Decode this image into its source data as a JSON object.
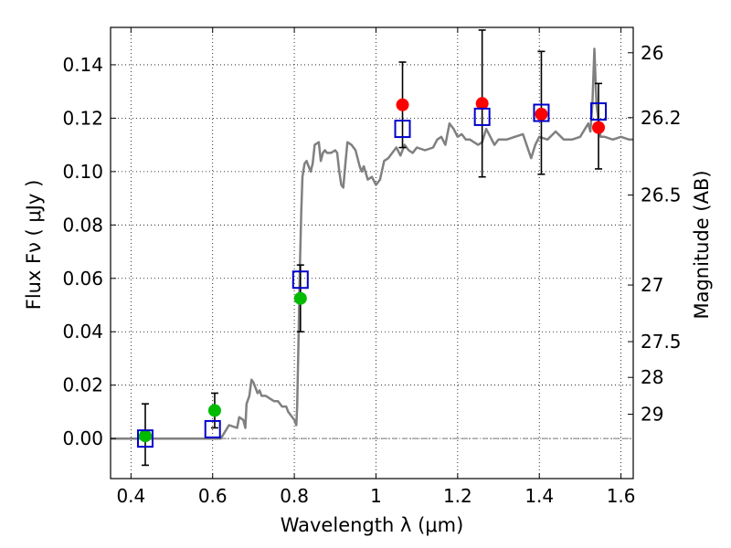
{
  "chart_data": {
    "type": "scatter",
    "title": "",
    "xlabel": "Wavelength  λ (μm)",
    "ylabel": "Flux  Fν  ( μJy )",
    "ylabel_right": "Magnitude (AB)",
    "xlim": [
      0.35,
      1.63
    ],
    "ylim": [
      -0.015,
      0.154
    ],
    "grid": true,
    "x_ticks": [
      0.4,
      0.6,
      0.8,
      1.0,
      1.2,
      1.4,
      1.6
    ],
    "x_tick_labels": [
      "0.4",
      "0.6",
      "0.8",
      "1",
      "1.2",
      "1.4",
      "1.6"
    ],
    "y_ticks": [
      0.0,
      0.02,
      0.04,
      0.06,
      0.08,
      0.1,
      0.12,
      0.14
    ],
    "y_tick_labels": [
      "0.00",
      "0.02",
      "0.04",
      "0.06",
      "0.08",
      "0.10",
      "0.12",
      "0.14"
    ],
    "right_axis_ticks": [
      {
        "label": "26",
        "flux": 0.1445
      },
      {
        "label": "26.2",
        "flux": 0.1202
      },
      {
        "label": "26.5",
        "flux": 0.0912
      },
      {
        "label": "27",
        "flux": 0.0575
      },
      {
        "label": "27.5",
        "flux": 0.0363
      },
      {
        "label": "28",
        "flux": 0.0229
      },
      {
        "label": "29",
        "flux": 0.0091
      }
    ],
    "colors": {
      "spectrum": "#808080",
      "green_points": "#00bb00",
      "red_points": "#ff0000",
      "model_squares": "#0000cc",
      "errorbar": "#000000"
    },
    "series": [
      {
        "name": "Model spectrum",
        "kind": "line",
        "points": [
          [
            0.35,
            0.0
          ],
          [
            0.55,
            0.0
          ],
          [
            0.62,
            0.0
          ],
          [
            0.64,
            0.005
          ],
          [
            0.66,
            0.004
          ],
          [
            0.665,
            0.008
          ],
          [
            0.675,
            0.007
          ],
          [
            0.68,
            0.004
          ],
          [
            0.683,
            0.013
          ],
          [
            0.69,
            0.016
          ],
          [
            0.695,
            0.022
          ],
          [
            0.7,
            0.021
          ],
          [
            0.705,
            0.019
          ],
          [
            0.71,
            0.017
          ],
          [
            0.715,
            0.018
          ],
          [
            0.72,
            0.016
          ],
          [
            0.73,
            0.016
          ],
          [
            0.74,
            0.015
          ],
          [
            0.75,
            0.014
          ],
          [
            0.76,
            0.014
          ],
          [
            0.77,
            0.012
          ],
          [
            0.78,
            0.012
          ],
          [
            0.785,
            0.01
          ],
          [
            0.79,
            0.009
          ],
          [
            0.8,
            0.007
          ],
          [
            0.805,
            0.005
          ],
          [
            0.807,
            0.012
          ],
          [
            0.81,
            0.035
          ],
          [
            0.813,
            0.06
          ],
          [
            0.817,
            0.085
          ],
          [
            0.82,
            0.098
          ],
          [
            0.825,
            0.103
          ],
          [
            0.83,
            0.104
          ],
          [
            0.835,
            0.102
          ],
          [
            0.84,
            0.1
          ],
          [
            0.845,
            0.103
          ],
          [
            0.85,
            0.11
          ],
          [
            0.86,
            0.111
          ],
          [
            0.865,
            0.104
          ],
          [
            0.87,
            0.107
          ],
          [
            0.875,
            0.108
          ],
          [
            0.88,
            0.107
          ],
          [
            0.89,
            0.107
          ],
          [
            0.9,
            0.108
          ],
          [
            0.905,
            0.107
          ],
          [
            0.91,
            0.1
          ],
          [
            0.915,
            0.095
          ],
          [
            0.92,
            0.094
          ],
          [
            0.925,
            0.103
          ],
          [
            0.93,
            0.111
          ],
          [
            0.94,
            0.11
          ],
          [
            0.95,
            0.108
          ],
          [
            0.96,
            0.102
          ],
          [
            0.965,
            0.1
          ],
          [
            0.97,
            0.102
          ],
          [
            0.98,
            0.097
          ],
          [
            0.99,
            0.098
          ],
          [
            1.0,
            0.095
          ],
          [
            1.01,
            0.097
          ],
          [
            1.02,
            0.104
          ],
          [
            1.03,
            0.105
          ],
          [
            1.04,
            0.107
          ],
          [
            1.05,
            0.109
          ],
          [
            1.06,
            0.106
          ],
          [
            1.07,
            0.11
          ],
          [
            1.08,
            0.108
          ],
          [
            1.09,
            0.107
          ],
          [
            1.1,
            0.109
          ],
          [
            1.12,
            0.108
          ],
          [
            1.14,
            0.109
          ],
          [
            1.15,
            0.112
          ],
          [
            1.16,
            0.113
          ],
          [
            1.17,
            0.11
          ],
          [
            1.18,
            0.118
          ],
          [
            1.19,
            0.116
          ],
          [
            1.2,
            0.113
          ],
          [
            1.21,
            0.114
          ],
          [
            1.22,
            0.112
          ],
          [
            1.23,
            0.112
          ],
          [
            1.24,
            0.111
          ],
          [
            1.25,
            0.11
          ],
          [
            1.26,
            0.111
          ],
          [
            1.27,
            0.116
          ],
          [
            1.28,
            0.113
          ],
          [
            1.29,
            0.11
          ],
          [
            1.3,
            0.112
          ],
          [
            1.32,
            0.112
          ],
          [
            1.34,
            0.113
          ],
          [
            1.36,
            0.114
          ],
          [
            1.38,
            0.105
          ],
          [
            1.39,
            0.11
          ],
          [
            1.4,
            0.113
          ],
          [
            1.42,
            0.112
          ],
          [
            1.44,
            0.115
          ],
          [
            1.46,
            0.112
          ],
          [
            1.48,
            0.112
          ],
          [
            1.5,
            0.113
          ],
          [
            1.52,
            0.118
          ],
          [
            1.525,
            0.115
          ],
          [
            1.53,
            0.125
          ],
          [
            1.535,
            0.146
          ],
          [
            1.54,
            0.125
          ],
          [
            1.55,
            0.113
          ],
          [
            1.56,
            0.113
          ],
          [
            1.58,
            0.112
          ],
          [
            1.6,
            0.113
          ],
          [
            1.62,
            0.112
          ],
          [
            1.63,
            0.112
          ]
        ]
      },
      {
        "name": "Observed flux (green)",
        "kind": "points",
        "points": [
          [
            0.435,
            0.001
          ],
          [
            0.605,
            0.0105
          ],
          [
            0.815,
            0.0525
          ]
        ]
      },
      {
        "name": "Observed flux (red)",
        "kind": "points",
        "points": [
          [
            1.065,
            0.125
          ],
          [
            1.26,
            0.1255
          ],
          [
            1.405,
            0.1215
          ],
          [
            1.545,
            0.1165
          ]
        ]
      },
      {
        "name": "Model photometry",
        "kind": "squares",
        "points": [
          [
            0.435,
            0.0
          ],
          [
            0.6,
            0.0035
          ],
          [
            0.815,
            0.0595
          ],
          [
            1.065,
            0.116
          ],
          [
            1.26,
            0.1205
          ],
          [
            1.405,
            0.122
          ],
          [
            1.545,
            0.1225
          ]
        ]
      },
      {
        "name": "Error bars",
        "kind": "errorbars",
        "points": [
          {
            "x": 0.435,
            "lo": -0.01,
            "hi": 0.013
          },
          {
            "x": 0.605,
            "lo": 0.004,
            "hi": 0.017
          },
          {
            "x": 0.815,
            "lo": 0.04,
            "hi": 0.065
          },
          {
            "x": 1.065,
            "lo": 0.109,
            "hi": 0.141
          },
          {
            "x": 1.26,
            "lo": 0.098,
            "hi": 0.153
          },
          {
            "x": 1.405,
            "lo": 0.099,
            "hi": 0.145
          },
          {
            "x": 1.545,
            "lo": 0.101,
            "hi": 0.133
          }
        ]
      }
    ]
  }
}
